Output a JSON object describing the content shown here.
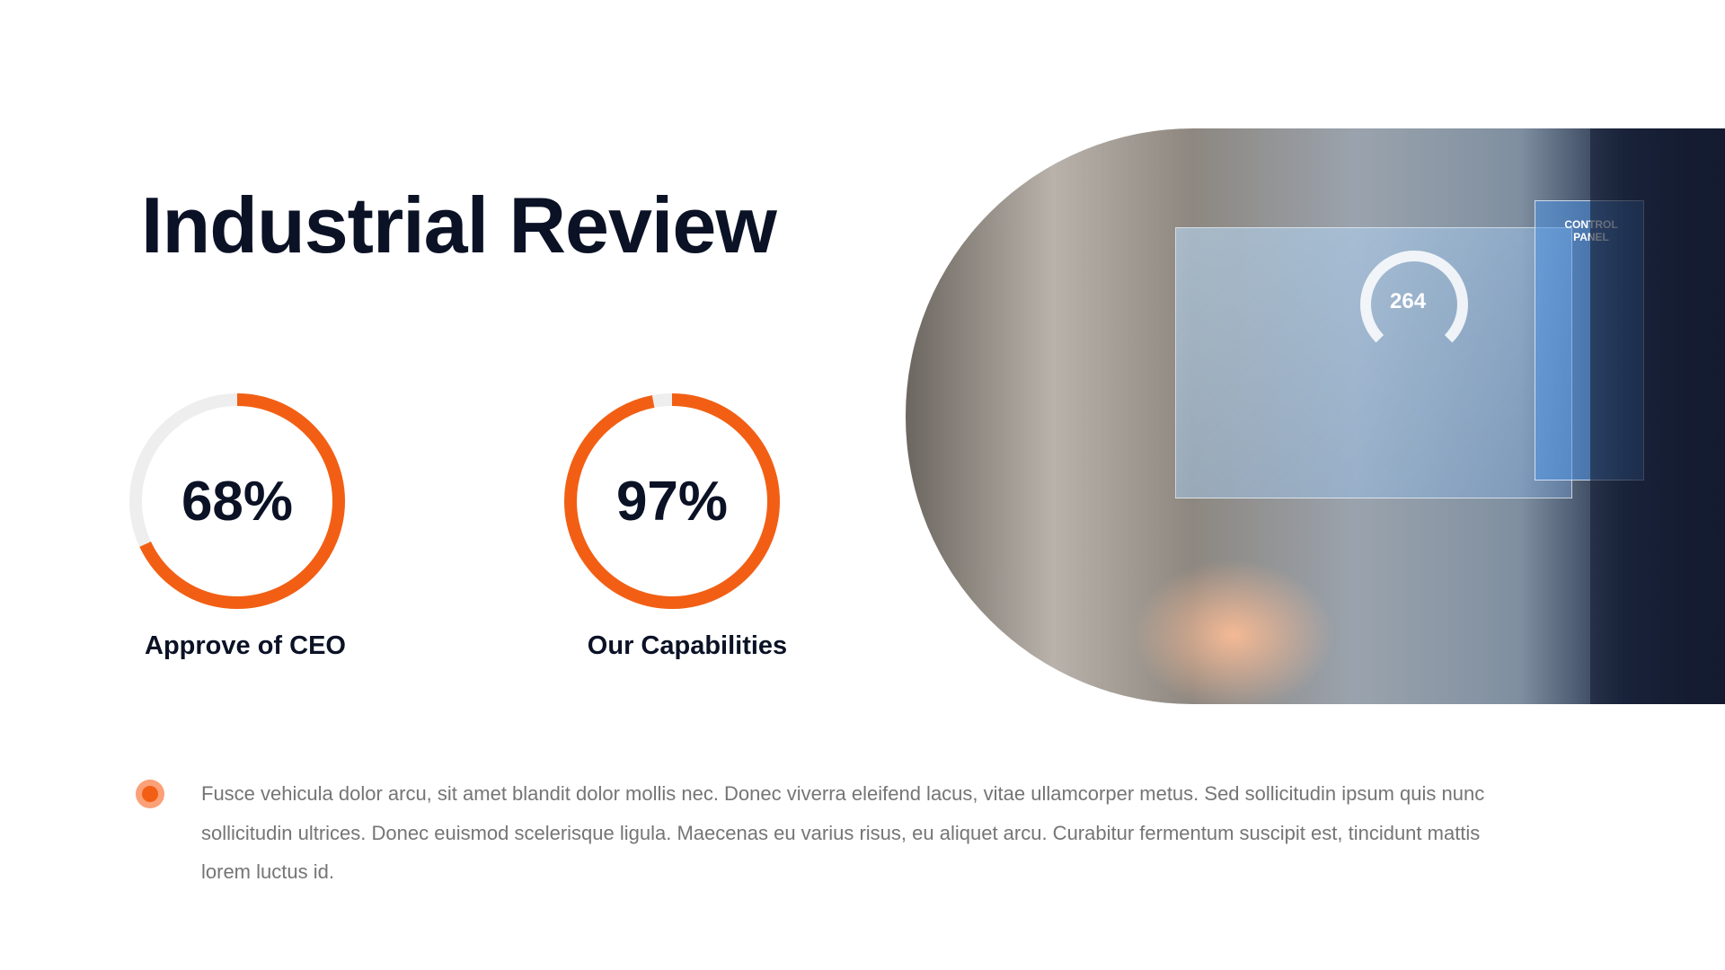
{
  "title": "Industrial Review",
  "colors": {
    "accent": "#f25f14",
    "track": "#eeeeee",
    "heading": "#0b1226",
    "body_text": "#757575"
  },
  "stats": [
    {
      "value": 68,
      "label_text": "68%",
      "caption": "Approve of CEO"
    },
    {
      "value": 97,
      "label_text": "97%",
      "caption": "Our Capabilities"
    }
  ],
  "image": {
    "hud_value": "264",
    "hud_panel_text": "CONTROL PANEL"
  },
  "bullet_icon": "circle-bullet-icon",
  "paragraph": "Fusce vehicula dolor arcu, sit amet blandit dolor mollis nec. Donec viverra eleifend lacus, vitae ullamcorper metus. Sed sollicitudin ipsum quis nunc sollicitudin ultrices. Donec euismod scelerisque ligula. Maecenas eu varius risus, eu aliquet arcu. Curabitur fermentum suscipit est, tincidunt mattis lorem luctus id."
}
